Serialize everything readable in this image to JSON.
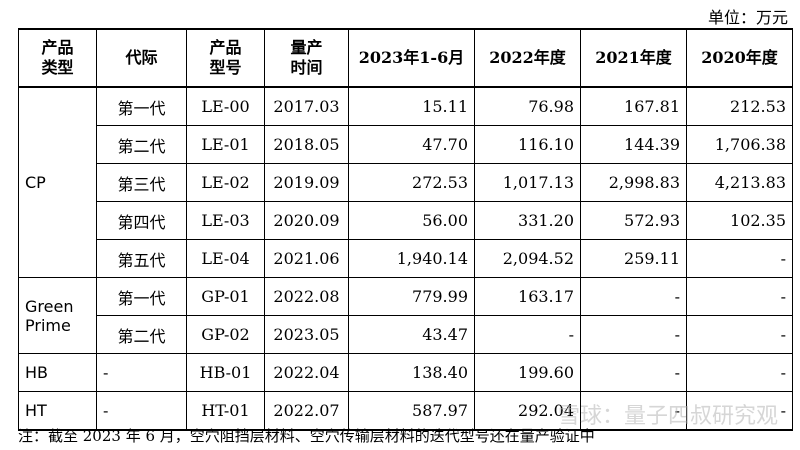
{
  "unit_label": "单位：万元",
  "headers": [
    "产品类型",
    "代际",
    "产品型号",
    "量产时间",
    "2023年1-6月",
    "2022年度",
    "2021年度",
    "2020年度"
  ],
  "header_lines": [
    [
      "产品",
      "类型"
    ],
    [
      "代际"
    ],
    [
      "产品",
      "型号"
    ],
    [
      "量产",
      "时间"
    ],
    [
      "2023年1-6月"
    ],
    [
      "2022年度"
    ],
    [
      "2021年度"
    ],
    [
      "2020年度"
    ]
  ],
  "rows": [
    {
      "type": "CP",
      "gen": "第一代",
      "model": "LE-00",
      "date": "2017.03",
      "v2023": "15.11",
      "v2022": "76.98",
      "v2021": "167.81",
      "v2020": "212.53"
    },
    {
      "type": "",
      "gen": "第二代",
      "model": "LE-01",
      "date": "2018.05",
      "v2023": "47.70",
      "v2022": "116.10",
      "v2021": "144.39",
      "v2020": "1,706.38"
    },
    {
      "type": "",
      "gen": "第三代",
      "model": "LE-02",
      "date": "2019.09",
      "v2023": "272.53",
      "v2022": "1,017.13",
      "v2021": "2,998.83",
      "v2020": "4,213.83"
    },
    {
      "type": "",
      "gen": "第四代",
      "model": "LE-03",
      "date": "2020.09",
      "v2023": "56.00",
      "v2022": "331.20",
      "v2021": "572.93",
      "v2020": "102.35"
    },
    {
      "type": "",
      "gen": "第五代",
      "model": "LE-04",
      "date": "2021.06",
      "v2023": "1,940.14",
      "v2022": "2,094.52",
      "v2021": "259.11",
      "v2020": "-"
    },
    {
      "type": "Green Prime",
      "gen": "第一代",
      "model": "GP-01",
      "date": "2022.08",
      "v2023": "779.99",
      "v2022": "163.17",
      "v2021": "-",
      "v2020": "-"
    },
    {
      "type": "",
      "gen": "第二代",
      "model": "GP-02",
      "date": "2023.05",
      "v2023": "43.47",
      "v2022": "-",
      "v2021": "-",
      "v2020": "-"
    },
    {
      "type": "HB",
      "gen": "-",
      "model": "HB-01",
      "date": "2022.04",
      "v2023": "138.40",
      "v2022": "199.60",
      "v2021": "-",
      "v2020": "-"
    },
    {
      "type": "HT",
      "gen": "-",
      "model": "HT-01",
      "date": "2022.07",
      "v2023": "587.97",
      "v2022": "292.04",
      "v2021": "-",
      "v2020": "-"
    }
  ],
  "type_groups": {
    "cp": "CP",
    "gp_line1": "Green",
    "gp_line2": "Prime",
    "hb": "HB",
    "ht": "HT"
  },
  "footnote": "注：截至 2023 年 6 月，空穴阻挡层材料、空穴传输层材料的迭代型号还在量产验证中",
  "watermark": "雪球：量子四叔研究观"
}
